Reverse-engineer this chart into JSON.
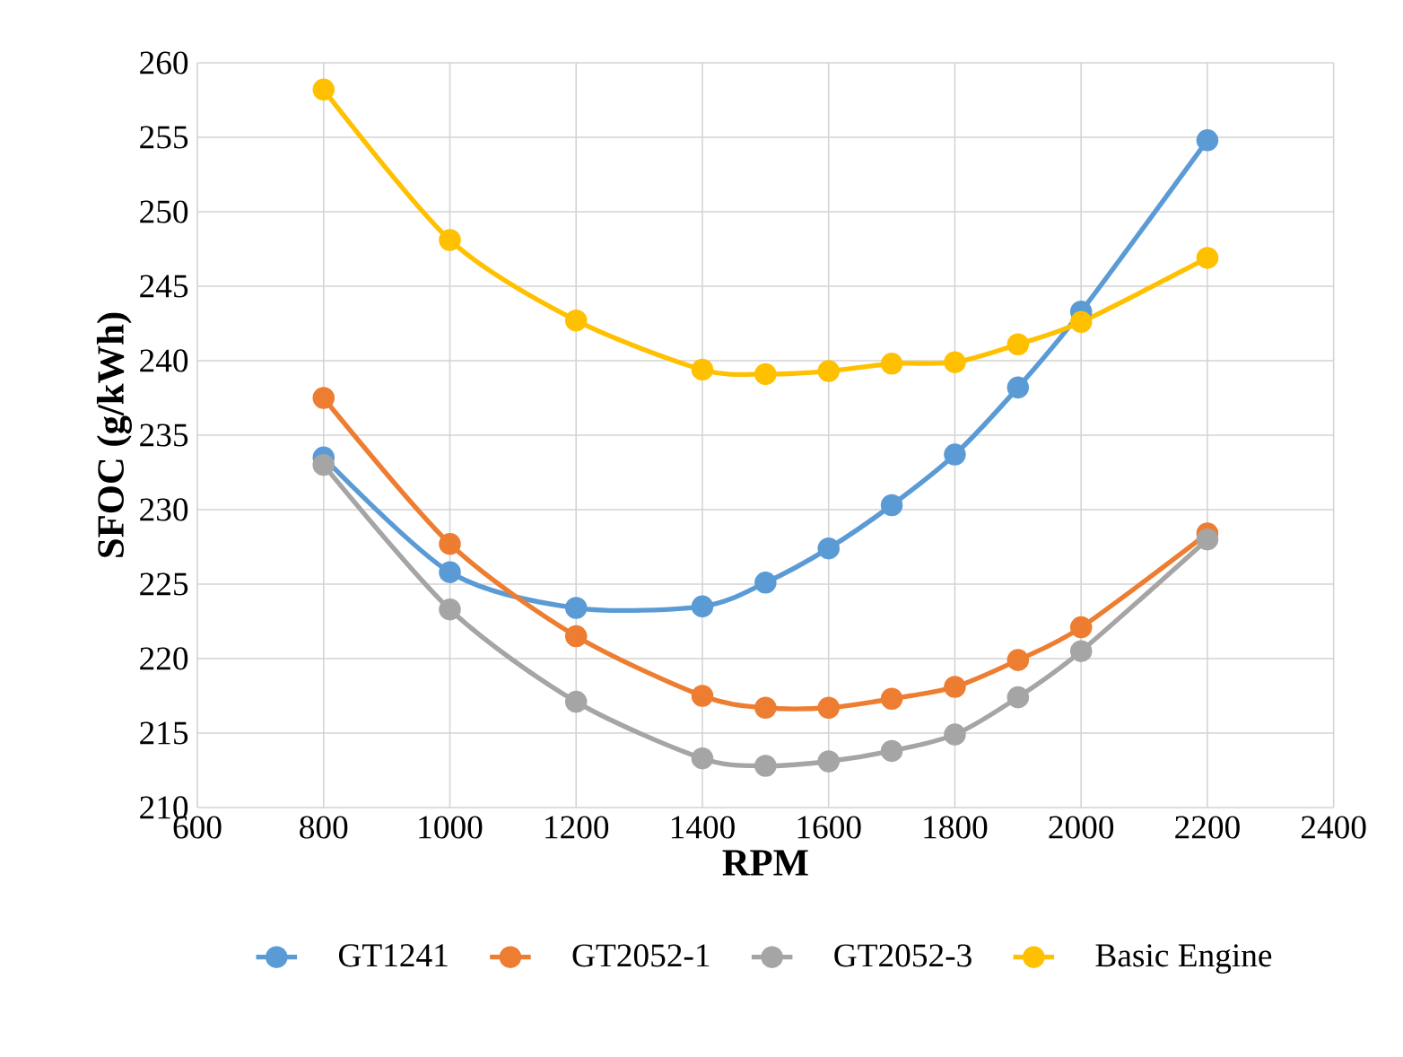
{
  "chart_data": {
    "type": "line",
    "xlabel": "RPM",
    "ylabel": "SFOC (g/kWh)",
    "x": [
      800,
      1000,
      1200,
      1400,
      1500,
      1600,
      1700,
      1800,
      1900,
      2000,
      2200
    ],
    "series": [
      {
        "name": "GT1241",
        "color": "#5b9bd5",
        "values": [
          233.5,
          225.8,
          223.4,
          223.5,
          225.1,
          227.4,
          230.3,
          233.7,
          238.2,
          243.3,
          254.8
        ]
      },
      {
        "name": "GT2052-1",
        "color": "#ed7d31",
        "values": [
          237.5,
          227.7,
          221.5,
          217.5,
          216.7,
          216.7,
          217.3,
          218.1,
          219.9,
          222.1,
          228.4
        ]
      },
      {
        "name": "GT2052-3",
        "color": "#a5a5a5",
        "values": [
          233.0,
          223.3,
          217.1,
          213.3,
          212.8,
          213.1,
          213.8,
          214.9,
          217.4,
          220.5,
          228.0
        ]
      },
      {
        "name": "Basic Engine",
        "color": "#ffc000",
        "values": [
          258.2,
          248.1,
          242.7,
          239.4,
          239.1,
          239.3,
          239.8,
          239.9,
          241.1,
          242.6,
          246.9
        ]
      }
    ],
    "xlim": [
      600,
      2400
    ],
    "xticks": [
      600,
      800,
      1000,
      1200,
      1400,
      1600,
      1800,
      2000,
      2200,
      2400
    ],
    "ylim": [
      210,
      260
    ],
    "yticks": [
      210,
      215,
      220,
      225,
      230,
      235,
      240,
      245,
      250,
      255,
      260
    ],
    "grid": true,
    "legend": "bottom",
    "marker": "circle",
    "line_style": "solid"
  }
}
